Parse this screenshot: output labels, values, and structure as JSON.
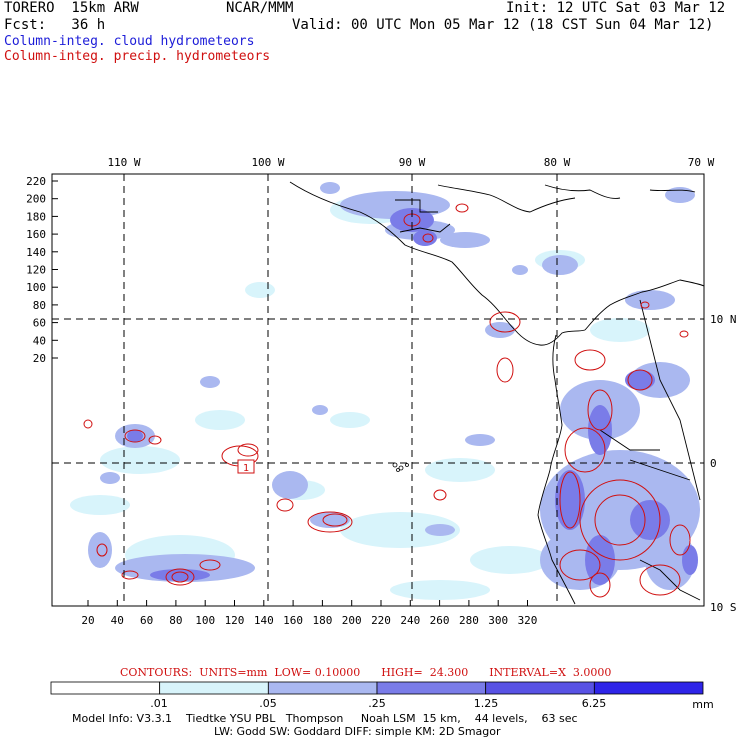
{
  "header": {
    "model": "TORERO  15km ARW",
    "org": "NCAR/MMM",
    "init": "Init: 12 UTC Sat 03 Mar 12",
    "fcst": "Fcst:   36 h",
    "valid": "Valid: 00 UTC Mon 05 Mar 12 (18 CST Sun 04 Mar 12)",
    "field1": "Column-integ. cloud hydrometeors",
    "field2": "Column-integ. precip. hydrometeors"
  },
  "map": {
    "lon_labels": [
      "110 W",
      "100 W",
      "90 W",
      "80 W",
      "70 W"
    ],
    "lat_labels": [
      "10 N",
      "0",
      "10 S"
    ],
    "y_ticks": [
      "220",
      "200",
      "180",
      "160",
      "140",
      "120",
      "100",
      "80",
      "60",
      "40",
      "20"
    ],
    "x_ticks": [
      "20",
      "40",
      "60",
      "80",
      "100",
      "120",
      "140",
      "160",
      "180",
      "200",
      "220",
      "240",
      "260",
      "280",
      "300",
      "320"
    ],
    "contour_labels": [
      "1"
    ]
  },
  "contour_info": {
    "text": "CONTOURS:  UNITS=mm  LOW= 0.10000      HIGH=  24.300      INTERVAL=X  3.0000"
  },
  "colorbar": {
    "levels": [
      ".01",
      ".05",
      ".25",
      "1.25",
      "6.25"
    ],
    "units": "mm",
    "colors": [
      "#ffffff",
      "#d8f4fb",
      "#aab8f0",
      "#7a7ce8",
      "#5852e4",
      "#2e24e8"
    ]
  },
  "footer": {
    "line1": "Model Info: V3.3.1    Tiedtke YSU PBL   Thompson     Noah LSM  15 km,    44 levels,    63 sec",
    "line2": "LW: Godd SW: Goddard DIFF: simple KM: 2D Smagor"
  }
}
